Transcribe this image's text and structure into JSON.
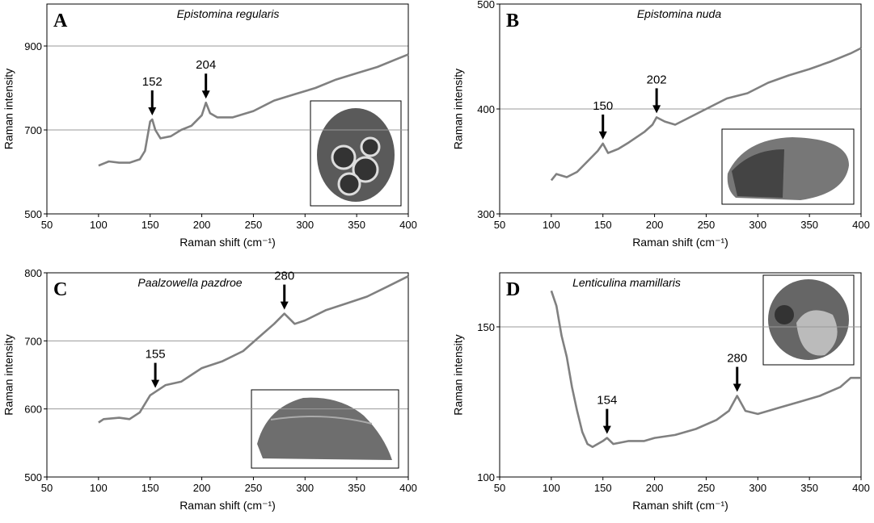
{
  "chart_data": [
    {
      "type": "line",
      "panel": "A",
      "title": "Epistomina regularis",
      "x_label": "Raman shift (cm⁻¹)",
      "y_label": "Raman intensity",
      "color": "#808080",
      "grid": true,
      "xlim": [
        50,
        400
      ],
      "xticks": [
        50,
        100,
        150,
        200,
        250,
        300,
        350,
        400
      ],
      "ylim": [
        500,
        1000
      ],
      "yticks": [
        500,
        700,
        900
      ],
      "x": [
        100,
        110,
        120,
        130,
        140,
        145,
        150,
        152,
        155,
        160,
        170,
        180,
        190,
        200,
        204,
        208,
        215,
        230,
        250,
        270,
        290,
        310,
        330,
        350,
        370,
        390,
        400
      ],
      "values": [
        615,
        625,
        622,
        622,
        630,
        650,
        720,
        725,
        700,
        680,
        685,
        700,
        710,
        735,
        765,
        740,
        730,
        730,
        745,
        770,
        785,
        800,
        820,
        835,
        850,
        870,
        880
      ],
      "peaks": [
        152,
        204
      ]
    },
    {
      "type": "line",
      "panel": "B",
      "title": "Epistomina nuda",
      "x_label": "Raman shift (cm⁻¹)",
      "y_label": "Raman intensity",
      "color": "#808080",
      "grid": true,
      "xlim": [
        50,
        400
      ],
      "xticks": [
        50,
        100,
        150,
        200,
        250,
        300,
        350,
        400
      ],
      "ylim": [
        300,
        500
      ],
      "yticks": [
        300,
        400,
        500
      ],
      "x": [
        100,
        105,
        115,
        125,
        135,
        145,
        150,
        155,
        165,
        175,
        190,
        198,
        202,
        210,
        220,
        230,
        250,
        270,
        290,
        310,
        330,
        350,
        370,
        390,
        400
      ],
      "values": [
        332,
        338,
        335,
        340,
        350,
        360,
        367,
        358,
        362,
        368,
        378,
        385,
        392,
        388,
        385,
        390,
        400,
        410,
        415,
        425,
        432,
        438,
        445,
        453,
        458
      ],
      "peaks": [
        150,
        202
      ]
    },
    {
      "type": "line",
      "panel": "C",
      "title": "Paalzowella pazdroe",
      "x_label": "Raman shift (cm⁻¹)",
      "y_label": "Raman intensity",
      "color": "#808080",
      "grid": true,
      "xlim": [
        50,
        400
      ],
      "xticks": [
        50,
        100,
        150,
        200,
        250,
        300,
        350,
        400
      ],
      "ylim": [
        500,
        800
      ],
      "yticks": [
        500,
        600,
        700,
        800
      ],
      "x": [
        100,
        105,
        120,
        130,
        140,
        150,
        155,
        165,
        180,
        190,
        200,
        220,
        240,
        255,
        270,
        280,
        290,
        300,
        320,
        340,
        360,
        380,
        400
      ],
      "values": [
        580,
        585,
        587,
        585,
        595,
        620,
        625,
        635,
        640,
        650,
        660,
        670,
        685,
        705,
        725,
        740,
        725,
        730,
        745,
        755,
        765,
        780,
        795
      ],
      "peaks": [
        155,
        280
      ]
    },
    {
      "type": "line",
      "panel": "D",
      "title": "Lenticulina mamillaris",
      "x_label": "Raman shift (cm⁻¹)",
      "y_label": "Raman intensity",
      "color": "#808080",
      "grid": true,
      "xlim": [
        50,
        400
      ],
      "xticks": [
        50,
        100,
        150,
        200,
        250,
        300,
        350,
        400
      ],
      "ylim": [
        100,
        168
      ],
      "yticks": [
        100,
        150
      ],
      "x": [
        100,
        105,
        110,
        115,
        120,
        125,
        130,
        135,
        140,
        150,
        154,
        160,
        175,
        190,
        200,
        220,
        240,
        260,
        272,
        280,
        288,
        300,
        320,
        340,
        360,
        380,
        390,
        400
      ],
      "values": [
        162,
        157,
        147,
        140,
        130,
        122,
        115,
        111,
        110,
        112,
        113,
        111,
        112,
        112,
        113,
        114,
        116,
        119,
        122,
        127,
        122,
        121,
        123,
        125,
        127,
        130,
        133,
        133
      ],
      "peaks": [
        154,
        280
      ]
    }
  ]
}
